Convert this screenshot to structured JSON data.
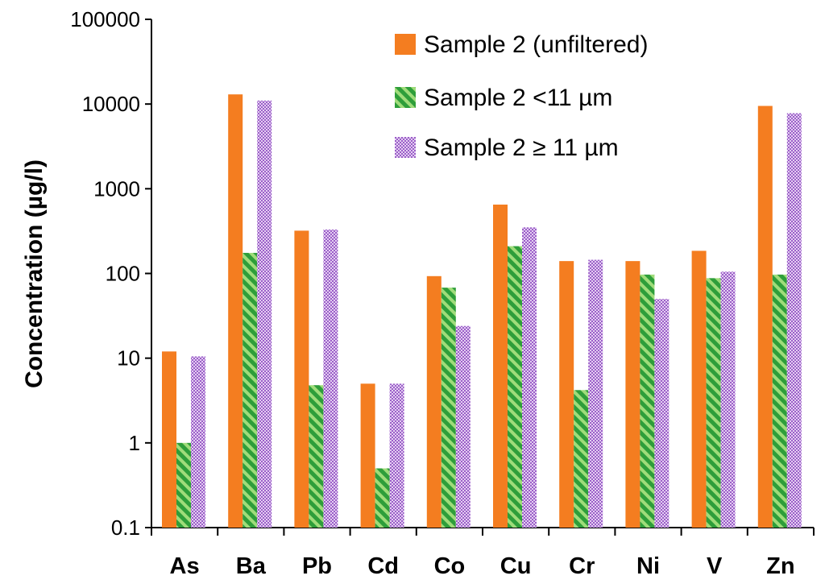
{
  "chart_data": {
    "type": "bar",
    "yscale": "log",
    "title": "",
    "xlabel": "",
    "ylabel": "Concentration (µg/l)",
    "ylim": [
      0.1,
      100000
    ],
    "yticks": [
      "0.1",
      "1",
      "10",
      "100",
      "1000",
      "10000",
      "100000"
    ],
    "grid": false,
    "legend_position": "top-right",
    "categories": [
      "As",
      "Ba",
      "Pb",
      "Cd",
      "Co",
      "Cu",
      "Cr",
      "Ni",
      "V",
      "Zn"
    ],
    "series": [
      {
        "name": "Sample 2 (unfiltered)",
        "color": "#f47d20",
        "pattern": "solid",
        "values": [
          12,
          13000,
          320,
          5,
          93,
          650,
          140,
          140,
          185,
          9500
        ]
      },
      {
        "name": "Sample 2 <11 µm",
        "color": "#3ab54a",
        "pattern": "diagonal-stripes",
        "values": [
          1,
          175,
          4.8,
          0.5,
          68,
          210,
          4.2,
          97,
          88,
          97
        ]
      },
      {
        "name": "Sample 2 ≥ 11 µm",
        "color": "#a56ccf",
        "pattern": "dotted",
        "values": [
          10.5,
          11000,
          330,
          5,
          24,
          350,
          145,
          50,
          105,
          7800
        ]
      }
    ]
  }
}
